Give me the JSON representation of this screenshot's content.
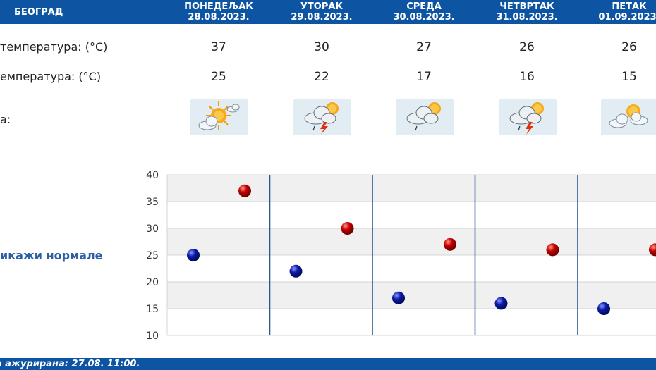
{
  "header": {
    "city": "БЕОГРАД",
    "days": [
      {
        "name": "ПОНЕДЕЉАК",
        "date": "28.08.2023."
      },
      {
        "name": "УТОРАК",
        "date": "29.08.2023."
      },
      {
        "name": "СРЕДА",
        "date": "30.08.2023."
      },
      {
        "name": "ЧЕТВРТАК",
        "date": "31.08.2023."
      },
      {
        "name": "ПЕТАК",
        "date": "01.09.2023."
      }
    ]
  },
  "rows": {
    "max_label": "температура: (°C)",
    "min_label": "емпература: (°C)",
    "icon_label": "а:"
  },
  "max_temps": [
    "37",
    "30",
    "27",
    "26",
    "26"
  ],
  "min_temps": [
    "25",
    "22",
    "17",
    "16",
    "15"
  ],
  "icons": [
    {
      "name": "sun-behind-cloud-icon"
    },
    {
      "name": "thunderstorm-icon"
    },
    {
      "name": "light-rain-icon"
    },
    {
      "name": "thunderstorm-icon"
    },
    {
      "name": "partly-cloudy-icon"
    }
  ],
  "toggle_label": "икажи нормале",
  "footer_text": "а ажурирана:  27.08.  11:00.",
  "colors": {
    "header": "#0d55a3",
    "max_marker": "#c40000",
    "min_marker": "#0a1aa8",
    "divider": "#2a5a93"
  },
  "chart_data": {
    "type": "scatter",
    "categories": [
      "28.08.2023.",
      "29.08.2023.",
      "30.08.2023.",
      "31.08.2023.",
      "01.09.2023."
    ],
    "series": [
      {
        "values": [
          37,
          30,
          27,
          26,
          26
        ]
      },
      {
        "values": [
          25,
          22,
          17,
          16,
          15
        ]
      }
    ],
    "yticks": [
      40,
      35,
      30,
      25,
      20,
      15,
      10
    ],
    "ylim": [
      10,
      40
    ],
    "grid": true,
    "title": "",
    "xlabel": "",
    "ylabel": ""
  }
}
